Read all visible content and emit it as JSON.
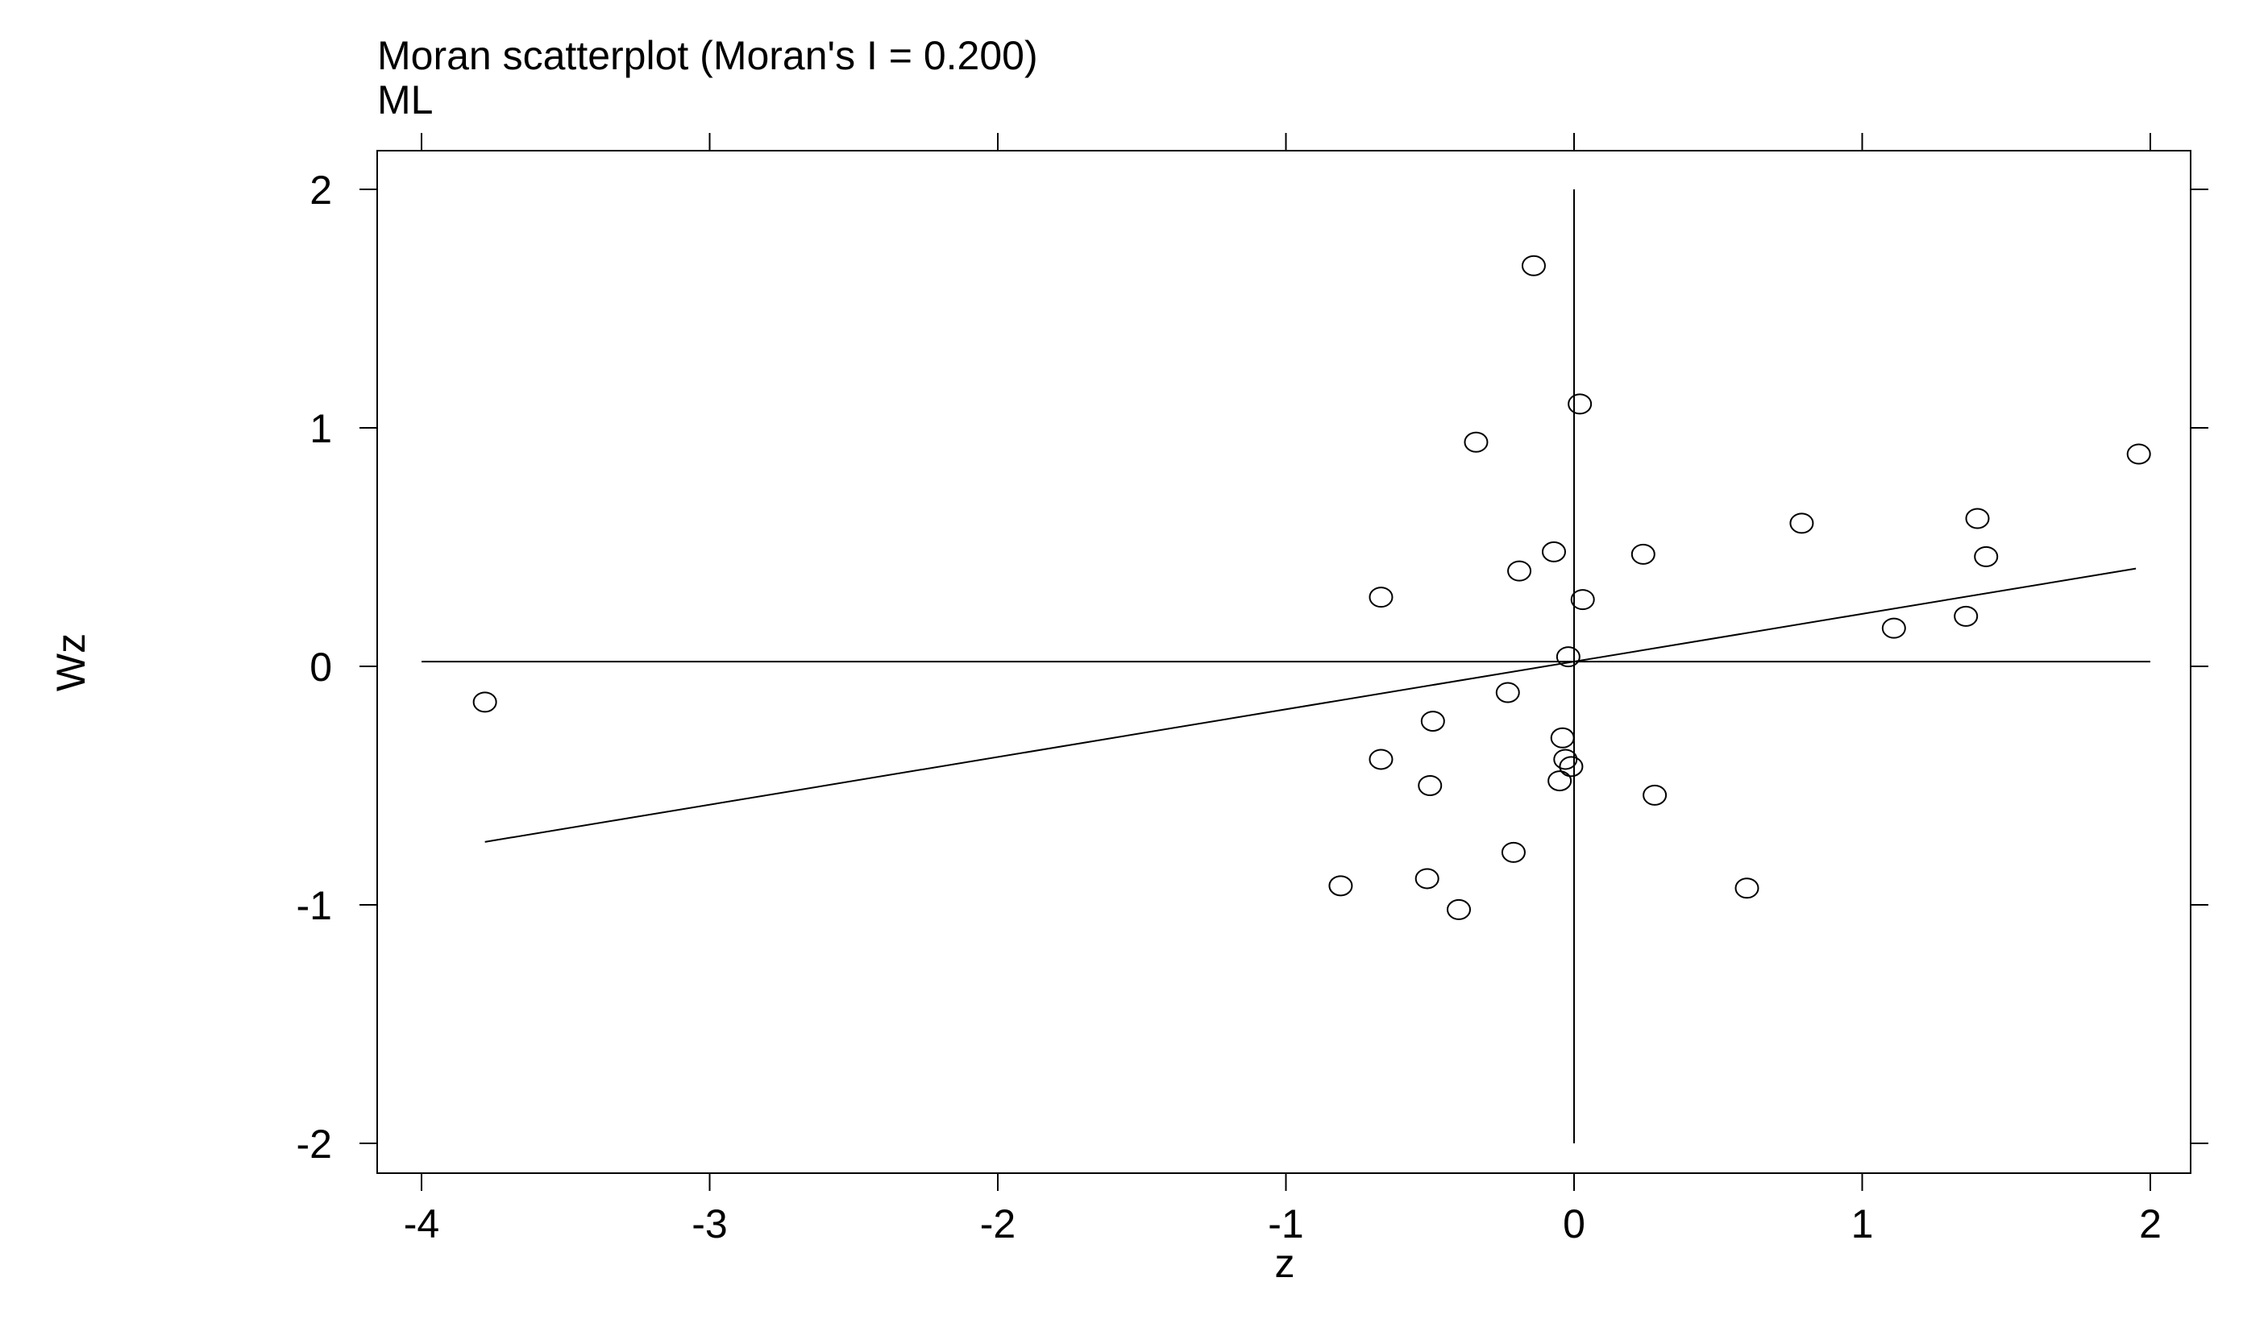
{
  "chart_data": {
    "type": "scatter",
    "title": "Moran scatterplot (Moran's I = 0.200)",
    "subtitle": "ML",
    "xlabel": "z",
    "ylabel": "Wz",
    "xlim": [
      -4.15,
      2.15
    ],
    "ylim": [
      -2.15,
      2.15
    ],
    "xticks": [
      -4,
      -3,
      -2,
      -1,
      0,
      1,
      2
    ],
    "yticks": [
      -2,
      -1,
      0,
      1,
      2
    ],
    "xtick_labels": [
      "-4",
      "-3",
      "-2",
      "-1",
      "0",
      "1",
      "2"
    ],
    "ytick_labels": [
      "-2",
      "-1",
      "0",
      "1",
      "2"
    ],
    "grid": false,
    "marker": "open-circle",
    "colors": {
      "marker": "#000000",
      "line": "#000000",
      "frame": "#000000"
    },
    "reference_lines": {
      "vertical": {
        "x": 0,
        "y_from": -2,
        "y_to": 2
      },
      "horizontal": {
        "y": 0.02,
        "x_from": -4,
        "x_to": 2
      }
    },
    "regression_line": {
      "slope": 0.2,
      "intercept": 0.02,
      "x_from": -3.78,
      "x_to": 1.95
    },
    "points": [
      {
        "x": -3.78,
        "y": -0.15
      },
      {
        "x": -0.81,
        "y": -0.92
      },
      {
        "x": -0.67,
        "y": 0.29
      },
      {
        "x": -0.67,
        "y": -0.39
      },
      {
        "x": -0.51,
        "y": -0.89
      },
      {
        "x": -0.5,
        "y": -0.5
      },
      {
        "x": -0.49,
        "y": -0.23
      },
      {
        "x": -0.4,
        "y": -1.02
      },
      {
        "x": -0.34,
        "y": 0.94
      },
      {
        "x": -0.23,
        "y": -0.11
      },
      {
        "x": -0.21,
        "y": -0.78
      },
      {
        "x": -0.19,
        "y": 0.4
      },
      {
        "x": -0.14,
        "y": 1.68
      },
      {
        "x": -0.07,
        "y": 0.48
      },
      {
        "x": -0.05,
        "y": -0.48
      },
      {
        "x": -0.04,
        "y": -0.3
      },
      {
        "x": -0.03,
        "y": -0.39
      },
      {
        "x": -0.02,
        "y": 0.04
      },
      {
        "x": -0.01,
        "y": -0.42
      },
      {
        "x": 0.02,
        "y": 1.1
      },
      {
        "x": 0.03,
        "y": 0.28
      },
      {
        "x": 0.24,
        "y": 0.47
      },
      {
        "x": 0.28,
        "y": -0.54
      },
      {
        "x": 0.6,
        "y": -0.93
      },
      {
        "x": 0.79,
        "y": 0.6
      },
      {
        "x": 1.11,
        "y": 0.16
      },
      {
        "x": 1.36,
        "y": 0.21
      },
      {
        "x": 1.4,
        "y": 0.62
      },
      {
        "x": 1.43,
        "y": 0.46
      },
      {
        "x": 1.96,
        "y": 0.89
      }
    ]
  }
}
